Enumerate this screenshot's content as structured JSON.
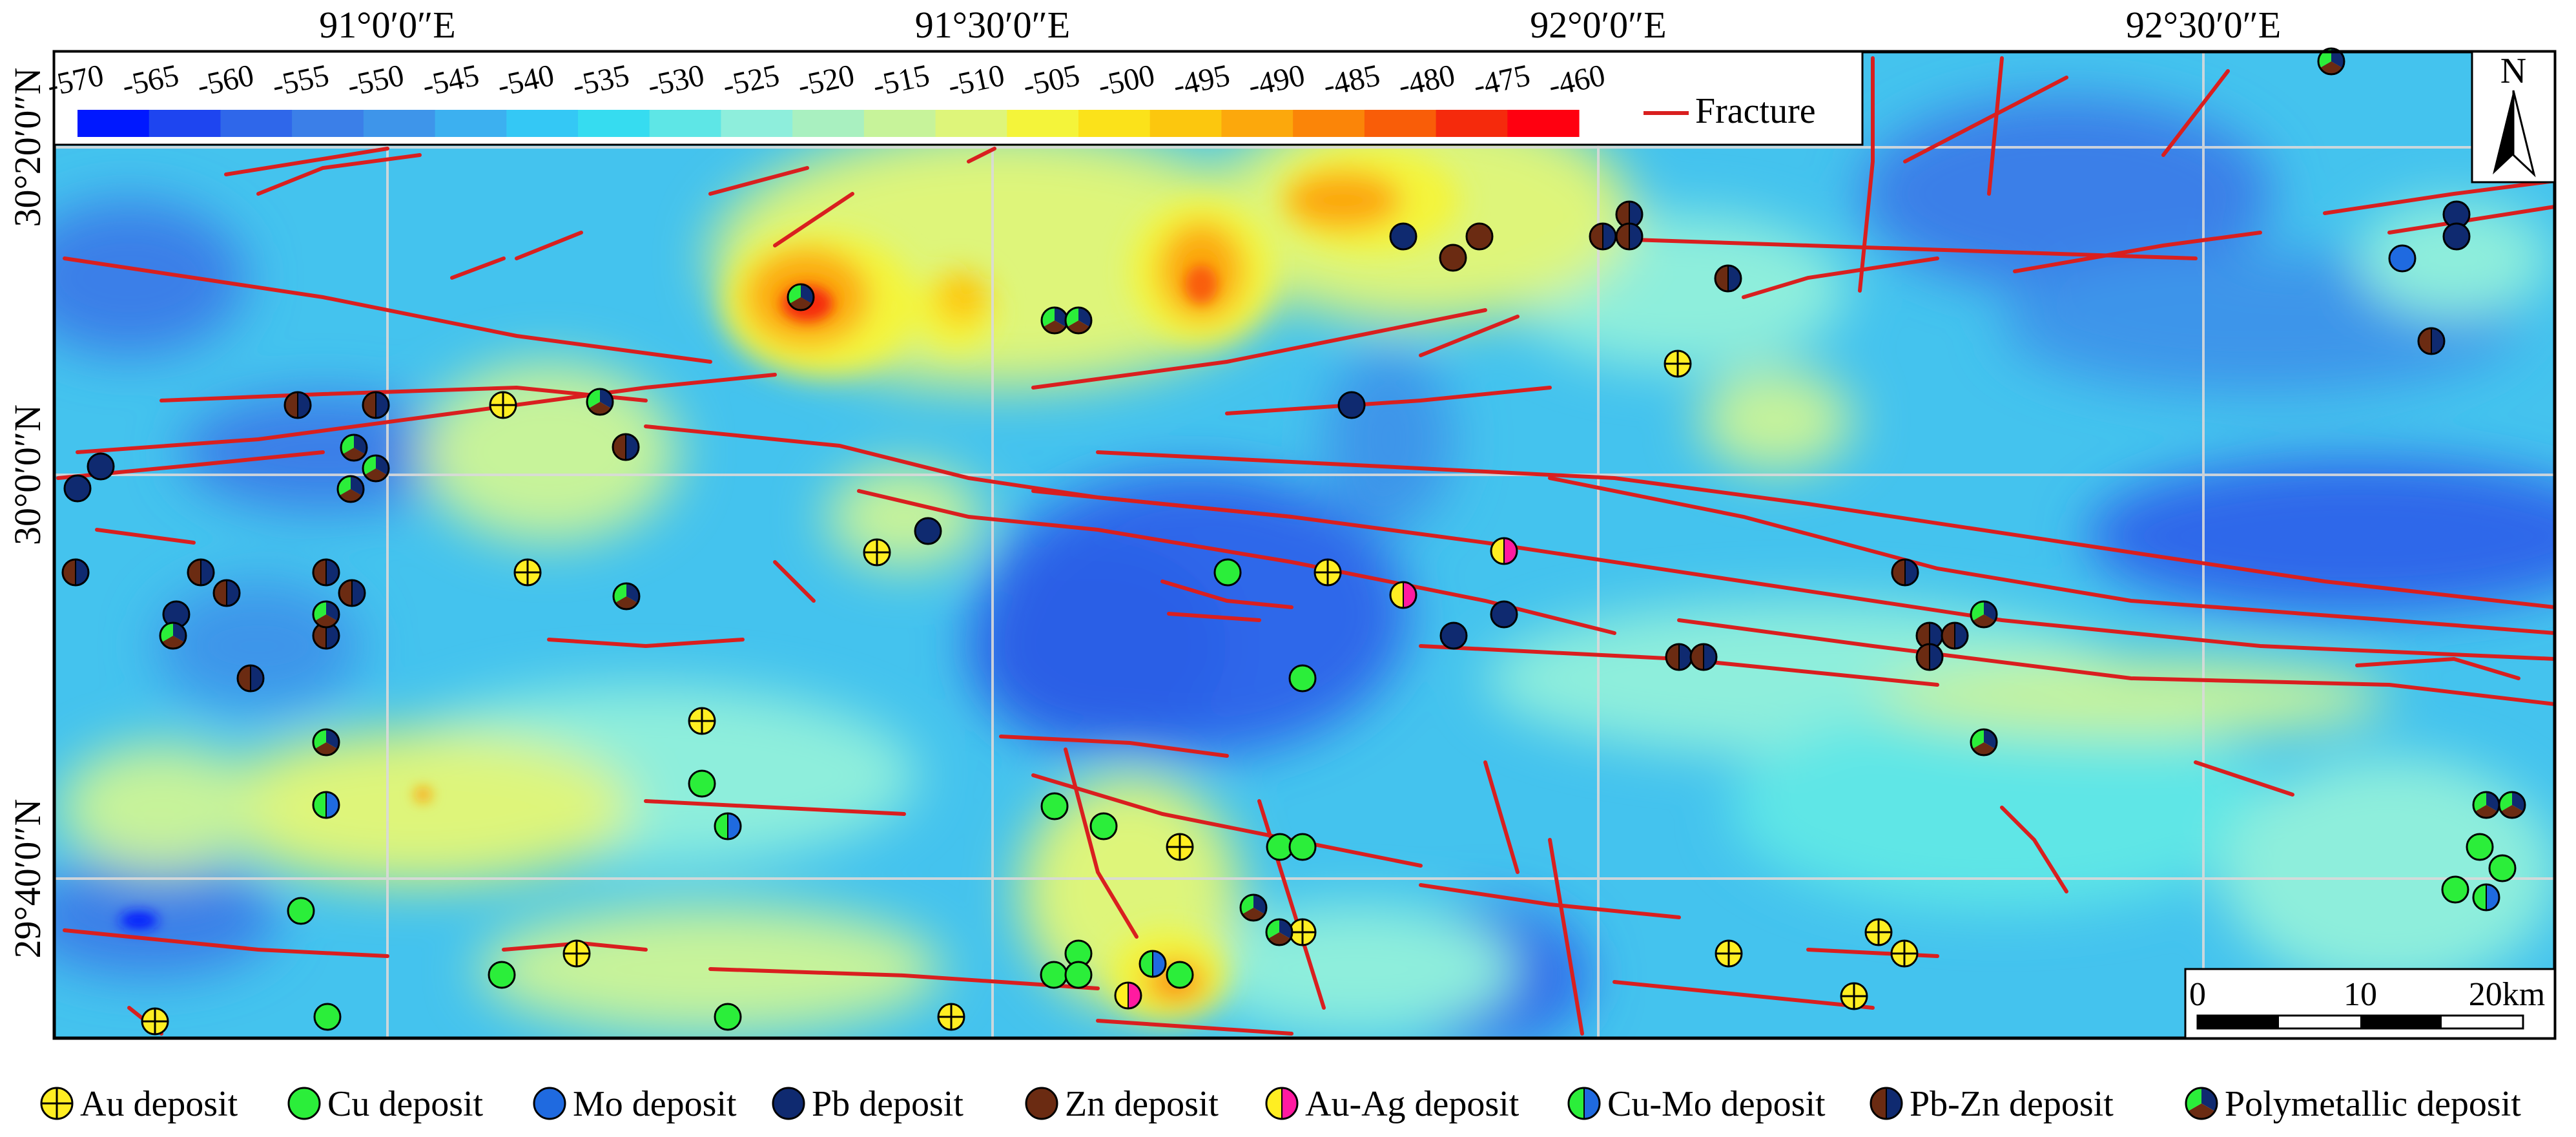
{
  "map": {
    "top_axis_labels": [
      "91°0′0″E",
      "91°30′0″E",
      "92°0′0″E",
      "92°30′0″E"
    ],
    "left_axis_labels": [
      "30°20′0″N",
      "30°0′0″N",
      "29°40′0″N"
    ],
    "north_arrow": {
      "label": "N",
      "icon": "north-arrow-icon"
    },
    "scale_bar": {
      "labels": [
        "0",
        "10",
        "20km"
      ]
    },
    "fracture_legend": {
      "label": "Fracture",
      "color": "#d91f1f"
    }
  },
  "colorbar": {
    "labels": [
      "-570",
      "-565",
      "-560",
      "-555",
      "-550",
      "-545",
      "-540",
      "-535",
      "-530",
      "-525",
      "-520",
      "-515",
      "-510",
      "-505",
      "-500",
      "-495",
      "-490",
      "-485",
      "-480",
      "-475",
      "-460"
    ],
    "colors": [
      "#0018ff",
      "#1e45f0",
      "#2f67ea",
      "#3b7fe8",
      "#3e95ea",
      "#3cb0f0",
      "#34c8f5",
      "#36dcf0",
      "#5ee6e6",
      "#8eeedc",
      "#a9f0c0",
      "#c7f39a",
      "#def57a",
      "#f4f43a",
      "#fbe21a",
      "#fcc70e",
      "#fca80c",
      "#fb8508",
      "#f95d08",
      "#f52a0c",
      "#ff0010"
    ]
  },
  "legend": {
    "items": [
      {
        "label": "Au deposit",
        "icon": "au-deposit-icon"
      },
      {
        "label": "Cu deposit",
        "icon": "cu-deposit-icon"
      },
      {
        "label": "Mo deposit",
        "icon": "mo-deposit-icon"
      },
      {
        "label": "Pb deposit",
        "icon": "pb-deposit-icon"
      },
      {
        "label": "Zn deposit",
        "icon": "zn-deposit-icon"
      },
      {
        "label": "Au-Ag deposit",
        "icon": "au-ag-deposit-icon"
      },
      {
        "label": "Cu-Mo deposit",
        "icon": "cu-mo-deposit-icon"
      },
      {
        "label": "Pb-Zn deposit",
        "icon": "pb-zn-deposit-icon"
      },
      {
        "label": "Polymetallic deposit",
        "icon": "polymetallic-deposit-icon"
      }
    ]
  },
  "colors": {
    "au": "#ffee22",
    "cu": "#2bee3a",
    "mo": "#1f6ae0",
    "pb": "#0f2a70",
    "zn": "#6b2b12",
    "ag": "#ff1aa0",
    "fracture": "#d91f1f",
    "frame": "#000000"
  }
}
